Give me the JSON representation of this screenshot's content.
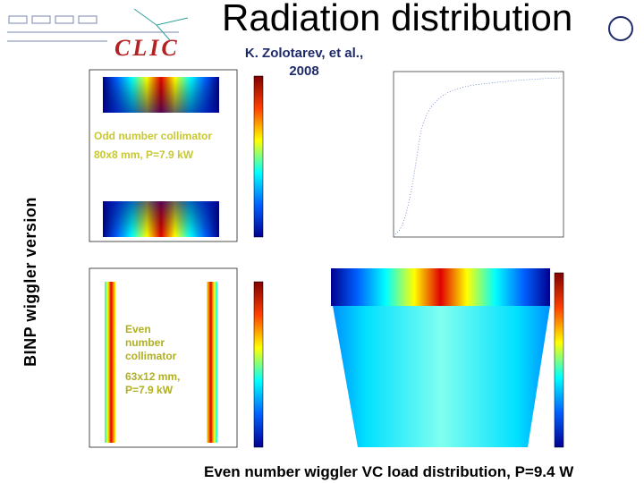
{
  "header": {
    "title": "Radiation distribution",
    "logo": "CLIC",
    "authors": [
      "K. Zolotarev, et al.,",
      "2008"
    ]
  },
  "side_label": "BINP wiggler version",
  "odd_panel": {
    "labels": [
      "Odd number collimator",
      "80x8 mm, P=7.9 kW"
    ]
  },
  "even_panel": {
    "labels": [
      "Even",
      "number",
      "collimator",
      "63x12 mm,",
      "P=7.9 kW"
    ]
  },
  "caption": "Even number wiggler VC load distribution, P=9.4 W"
}
